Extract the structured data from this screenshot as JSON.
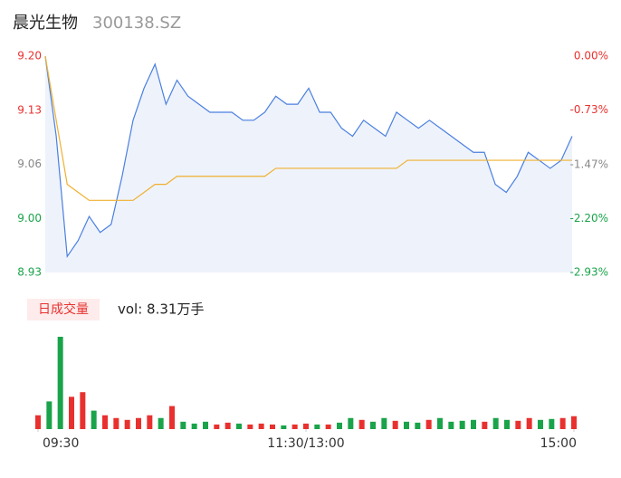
{
  "header": {
    "name": "晨光生物",
    "code": "300138.SZ"
  },
  "chart_data": {
    "type": "intraday",
    "x": [
      0,
      5,
      10,
      15,
      20,
      25,
      30,
      35,
      40,
      45,
      50,
      55,
      60,
      65,
      70,
      75,
      80,
      85,
      90,
      95,
      100,
      105,
      110,
      115,
      120,
      125,
      130,
      135,
      140,
      145,
      150,
      155,
      160,
      165,
      170,
      175,
      180,
      185,
      190,
      195,
      200,
      205,
      210,
      215,
      220,
      225,
      230,
      235,
      240
    ],
    "xlim": [
      0,
      240
    ],
    "xticks": [
      {
        "value": 0,
        "label": "09:30"
      },
      {
        "value": 120,
        "label": "11:30/13:00"
      },
      {
        "value": 240,
        "label": "15:00"
      }
    ],
    "series": [
      {
        "name": "price",
        "color": "#4a7fe0",
        "values": [
          9.2,
          9.1,
          8.95,
          8.97,
          9.0,
          8.98,
          8.99,
          9.05,
          9.12,
          9.16,
          9.19,
          9.14,
          9.17,
          9.15,
          9.14,
          9.13,
          9.13,
          9.13,
          9.12,
          9.12,
          9.13,
          9.15,
          9.14,
          9.14,
          9.16,
          9.13,
          9.13,
          9.11,
          9.1,
          9.12,
          9.11,
          9.1,
          9.13,
          9.12,
          9.11,
          9.12,
          9.11,
          9.1,
          9.09,
          9.08,
          9.08,
          9.04,
          9.03,
          9.05,
          9.08,
          9.07,
          9.06,
          9.07,
          9.1
        ]
      },
      {
        "name": "average",
        "color": "#f0b030",
        "values": [
          9.2,
          9.12,
          9.04,
          9.03,
          9.02,
          9.02,
          9.02,
          9.02,
          9.02,
          9.03,
          9.04,
          9.04,
          9.05,
          9.05,
          9.05,
          9.05,
          9.05,
          9.05,
          9.05,
          9.05,
          9.05,
          9.06,
          9.06,
          9.06,
          9.06,
          9.06,
          9.06,
          9.06,
          9.06,
          9.06,
          9.06,
          9.06,
          9.06,
          9.07,
          9.07,
          9.07,
          9.07,
          9.07,
          9.07,
          9.07,
          9.07,
          9.07,
          9.07,
          9.07,
          9.07,
          9.07,
          9.07,
          9.07,
          9.07
        ]
      }
    ],
    "ylim": [
      8.93,
      9.2
    ],
    "yticks": [
      {
        "value": 8.93,
        "label": "8.93"
      },
      {
        "value": 8.9975,
        "label": "9.00"
      },
      {
        "value": 9.065,
        "label": "9.06"
      },
      {
        "value": 9.1325,
        "label": "9.13"
      },
      {
        "value": 9.2,
        "label": "9.20"
      }
    ],
    "y2lim": [
      -2.93,
      0
    ],
    "y2ticks": [
      {
        "value": -2.93,
        "label": "-2.93%"
      },
      {
        "value": -2.2,
        "label": "-2.20%"
      },
      {
        "value": -1.47,
        "label": "-1.47%"
      },
      {
        "value": -0.73,
        "label": "-0.73%"
      },
      {
        "value": 0,
        "label": "0.00%"
      }
    ],
    "up_color": "#e8312f",
    "down_color": "#1aa34a",
    "flat_color": "#888888",
    "area_color": "#eef3fb",
    "volume": {
      "button": "日成交量",
      "label": "vol: 8.31万手",
      "values": [
        15,
        30,
        100,
        35,
        40,
        20,
        15,
        12,
        10,
        12,
        15,
        12,
        25,
        8,
        6,
        8,
        5,
        7,
        6,
        5,
        6,
        5,
        4,
        5,
        6,
        5,
        5,
        7,
        12,
        10,
        8,
        12,
        9,
        8,
        7,
        10,
        12,
        8,
        9,
        10,
        8,
        12,
        10,
        9,
        12,
        10,
        11,
        12,
        14
      ],
      "ylim": [
        0,
        100
      ]
    }
  }
}
